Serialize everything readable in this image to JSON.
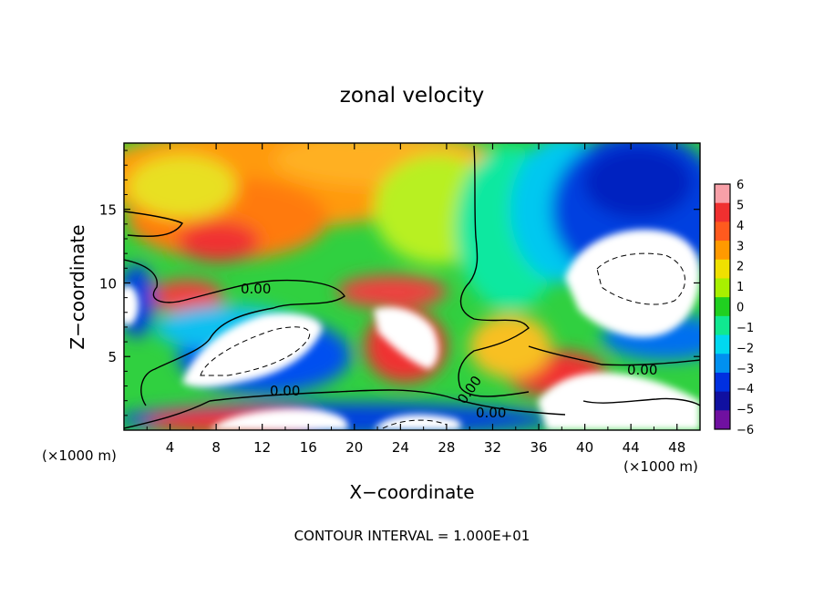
{
  "chart_data": {
    "type": "heatmap",
    "title": "zonal velocity",
    "xlabel": "X−coordinate",
    "ylabel": "Z−coordinate",
    "x_units": "(×1000 m)",
    "y_units": "(×1000 m)",
    "xlim": [
      0,
      50
    ],
    "ylim": [
      0,
      19.5
    ],
    "x_ticks": [
      4,
      8,
      12,
      16,
      20,
      24,
      28,
      32,
      36,
      40,
      44,
      48
    ],
    "x_tick_labels": [
      "4",
      "8",
      "12",
      "16",
      "20",
      "24",
      "28",
      "32",
      "36",
      "40",
      "44",
      "48"
    ],
    "y_ticks": [
      5,
      10,
      15
    ],
    "y_tick_labels": [
      "5",
      "10",
      "15"
    ],
    "colorbar": {
      "levels": [
        6,
        5,
        4,
        3,
        2,
        1,
        0,
        -1,
        -2,
        -3,
        -4,
        -5,
        -6
      ],
      "labels": [
        "6",
        "5",
        "4",
        "3",
        "2",
        "1",
        "0",
        "−1",
        "−2",
        "−3",
        "−4",
        "−5",
        "−6"
      ],
      "colors": [
        "#f8a0a8",
        "#f03030",
        "#ff5a1e",
        "#ff9a00",
        "#f0e000",
        "#a8f000",
        "#20d020",
        "#10e890",
        "#00d8f0",
        "#0090f0",
        "#0030e0",
        "#1010a0",
        "#7010a0"
      ]
    },
    "contour_labels": [
      "0.00",
      "0.00",
      "0.00",
      "0.00",
      "0.00"
    ],
    "footnote": "CONTOUR INTERVAL = 1.000E+01"
  }
}
